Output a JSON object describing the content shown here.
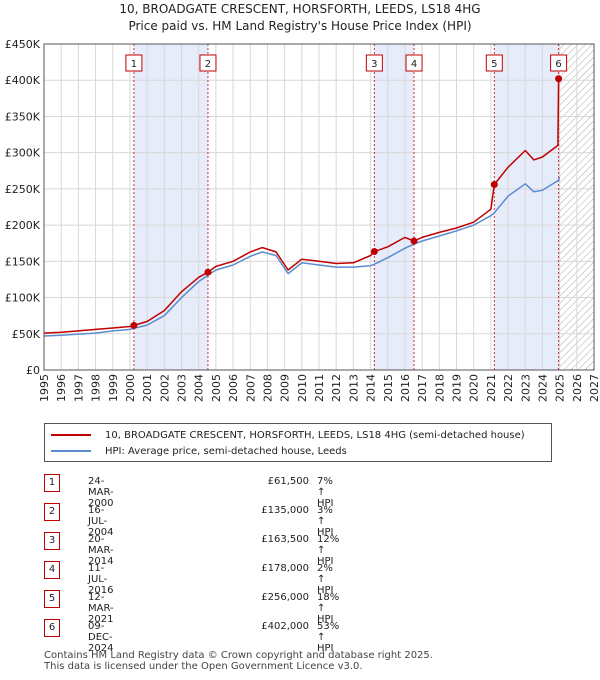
{
  "title_line1": "10, BROADGATE CRESCENT, HORSFORTH, LEEDS, LS18 4HG",
  "title_line2": "Price paid vs. HM Land Registry's House Price Index (HPI)",
  "legend": {
    "property": "10, BROADGATE CRESCENT, HORSFORTH, LEEDS, LS18 4HG (semi-detached house)",
    "hpi": "HPI: Average price, semi-detached house, Leeds"
  },
  "colors": {
    "property": "#c00000",
    "hpi": "#5b8ccf",
    "shade": "#e6ecf9",
    "grid": "#d8d8d8",
    "hatch": "#aaaaaa"
  },
  "transactions": [
    {
      "num": "1",
      "date": "24-MAR-2000",
      "price": "£61,500",
      "hpi": "7% ↑ HPI"
    },
    {
      "num": "2",
      "date": "16-JUL-2004",
      "price": "£135,000",
      "hpi": "3% ↑ HPI"
    },
    {
      "num": "3",
      "date": "20-MAR-2014",
      "price": "£163,500",
      "hpi": "12% ↑ HPI"
    },
    {
      "num": "4",
      "date": "11-JUL-2016",
      "price": "£178,000",
      "hpi": "2% ↑ HPI"
    },
    {
      "num": "5",
      "date": "12-MAR-2021",
      "price": "£256,000",
      "hpi": "18% ↑ HPI"
    },
    {
      "num": "6",
      "date": "09-DEC-2024",
      "price": "£402,000",
      "hpi": "53% ↑ HPI"
    }
  ],
  "footer_line1": "Contains HM Land Registry data © Crown copyright and database right 2025.",
  "footer_line2": "This data is licensed under the Open Government Licence v3.0.",
  "chart_data": {
    "type": "line",
    "title": "10, BROADGATE CRESCENT, HORSFORTH, LEEDS, LS18 4HG — Price paid vs. HM Land Registry's House Price Index (HPI)",
    "xlim": [
      1995,
      2027
    ],
    "ylim": [
      0,
      450000
    ],
    "xticks": [
      1995,
      1996,
      1997,
      1998,
      1999,
      2000,
      2001,
      2002,
      2003,
      2004,
      2005,
      2006,
      2007,
      2008,
      2009,
      2010,
      2011,
      2012,
      2013,
      2014,
      2015,
      2016,
      2017,
      2018,
      2019,
      2020,
      2021,
      2022,
      2023,
      2024,
      2025,
      2026,
      2027
    ],
    "yticks": [
      0,
      50000,
      100000,
      150000,
      200000,
      250000,
      300000,
      350000,
      400000,
      450000
    ],
    "ytick_labels": [
      "£0",
      "£50K",
      "£100K",
      "£150K",
      "£200K",
      "£250K",
      "£300K",
      "£350K",
      "£400K",
      "£450K"
    ],
    "forecast_start": 2025.0,
    "shaded_periods": [
      [
        2000.23,
        2004.54
      ],
      [
        2014.22,
        2016.53
      ],
      [
        2021.2,
        2024.94
      ]
    ],
    "sales": [
      {
        "label": "1",
        "x": 2000.23,
        "y": 61500
      },
      {
        "label": "2",
        "x": 2004.54,
        "y": 135000
      },
      {
        "label": "3",
        "x": 2014.22,
        "y": 163500
      },
      {
        "label": "4",
        "x": 2016.53,
        "y": 178000
      },
      {
        "label": "5",
        "x": 2021.2,
        "y": 256000
      },
      {
        "label": "6",
        "x": 2024.94,
        "y": 402000
      }
    ],
    "series": [
      {
        "name": "HPI: Average price, semi-detached house, Leeds",
        "x": [
          1995,
          1996,
          1997,
          1998,
          1999,
          2000,
          2000.23,
          2001,
          2002,
          2003,
          2004,
          2004.54,
          2005,
          2006,
          2007,
          2007.7,
          2008.5,
          2009.2,
          2010,
          2011,
          2012,
          2013,
          2014,
          2014.22,
          2015,
          2016,
          2016.53,
          2017,
          2018,
          2019,
          2020,
          2021,
          2021.2,
          2022,
          2023,
          2023.5,
          2024,
          2024.94,
          2025
        ],
        "y": [
          47000,
          48000,
          49500,
          51000,
          54000,
          56000,
          57500,
          62000,
          75000,
          100000,
          122000,
          131000,
          138000,
          145000,
          157000,
          163000,
          158000,
          133000,
          148000,
          145000,
          142000,
          142000,
          144000,
          146000,
          155000,
          168000,
          174000,
          178000,
          185000,
          192000,
          200000,
          213000,
          217000,
          240000,
          257000,
          246000,
          248000,
          262000,
          266000
        ]
      },
      {
        "name": "10, BROADGATE CRESCENT, HORSFORTH, LEEDS, LS18 4HG (semi-detached house)",
        "x": [
          1995,
          1996,
          1997,
          1998,
          1999,
          2000,
          2000.23,
          2001,
          2002,
          2003,
          2004,
          2004.54,
          2005,
          2006,
          2007,
          2007.7,
          2008.5,
          2009.2,
          2010,
          2011,
          2012,
          2013,
          2014,
          2014.22,
          2015,
          2016,
          2016.53,
          2017,
          2018,
          2019,
          2020,
          2021,
          2021.2,
          2022,
          2023,
          2023.5,
          2024,
          2024.9,
          2024.94,
          2025
        ],
        "y": [
          51000,
          52000,
          54000,
          56000,
          58000,
          60000,
          61500,
          67000,
          82000,
          108000,
          128000,
          135000,
          143000,
          150000,
          163000,
          169000,
          163000,
          138000,
          153000,
          150000,
          147000,
          148000,
          158000,
          163500,
          170000,
          183000,
          178000,
          183000,
          190000,
          196000,
          204000,
          222000,
          256000,
          280000,
          303000,
          290000,
          294000,
          310000,
          402000,
          405000
        ]
      }
    ]
  }
}
